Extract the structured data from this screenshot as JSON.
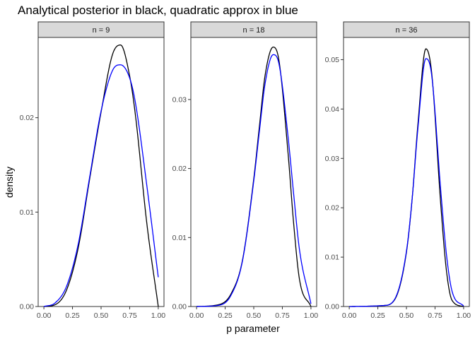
{
  "chart_data": {
    "type": "line",
    "title": "Analytical posterior in black, quadratic approx in blue",
    "xlabel": "p parameter",
    "ylabel": "density",
    "colors": {
      "analytical": "#000000",
      "quadratic": "#0000ff",
      "strip_fill": "#d9d9d9",
      "panel_border": "#333333"
    },
    "grid": false,
    "facets": [
      {
        "label": "n = 9",
        "x": [
          0,
          0.1,
          0.2,
          0.3,
          0.4,
          0.5,
          0.6,
          0.67,
          0.75,
          0.8,
          0.9,
          1.0
        ],
        "series": [
          {
            "values": [
              0,
              0.0002,
              0.0018,
              0.0062,
              0.0135,
              0.0206,
              0.0267,
              0.0277,
              0.0244,
              0.0203,
              0.0088,
              0
            ]
          },
          {
            "values": [
              0,
              0.0004,
              0.0022,
              0.0066,
              0.0137,
              0.0207,
              0.025,
              0.0256,
              0.0242,
              0.0216,
              0.0128,
              0.0031
            ]
          }
        ],
        "ylim": [
          0,
          0.0285
        ],
        "yticks": [
          0.0,
          0.01,
          0.02
        ],
        "ytick_labels": [
          "0.00",
          "0.01",
          "0.02"
        ],
        "xticks": [
          0,
          0.25,
          0.5,
          0.75,
          1.0
        ],
        "xtick_labels": [
          "0.00",
          "0.25",
          "0.50",
          "0.75",
          "1.00"
        ]
      },
      {
        "label": "n = 18",
        "x": [
          0,
          0.2,
          0.3,
          0.4,
          0.5,
          0.55,
          0.6,
          0.67,
          0.72,
          0.8,
          0.85,
          0.9,
          1.0
        ],
        "series": [
          {
            "values": [
              0,
              0.0003,
              0.0018,
              0.0066,
              0.0185,
              0.0262,
              0.0336,
              0.0376,
              0.0357,
              0.0222,
              0.0118,
              0.0039,
              0
            ]
          },
          {
            "values": [
              0,
              0.0002,
              0.0016,
              0.0065,
              0.0182,
              0.0255,
              0.0324,
              0.0365,
              0.0352,
              0.0246,
              0.0161,
              0.0082,
              0.0004
            ]
          }
        ],
        "ylim": [
          0,
          0.039
        ],
        "yticks": [
          0.0,
          0.01,
          0.02,
          0.03
        ],
        "ytick_labels": [
          "0.00",
          "0.01",
          "0.02",
          "0.03"
        ],
        "xticks": [
          0,
          0.25,
          0.5,
          0.75,
          1.0
        ],
        "xtick_labels": [
          "0.00",
          "0.25",
          "0.50",
          "0.75",
          "1.00"
        ]
      },
      {
        "label": "n = 36",
        "x": [
          0,
          0.3,
          0.4,
          0.5,
          0.55,
          0.6,
          0.67,
          0.72,
          0.8,
          0.85,
          0.9,
          1.0
        ],
        "series": [
          {
            "values": [
              0,
              0.0002,
              0.0015,
              0.011,
              0.0218,
              0.0368,
              0.0522,
              0.0475,
              0.0207,
              0.0072,
              0.0012,
              0
            ]
          },
          {
            "values": [
              0,
              0.0002,
              0.0016,
              0.0112,
              0.0218,
              0.036,
              0.0502,
              0.047,
              0.0235,
              0.0105,
              0.003,
              0.0001
            ]
          }
        ],
        "ylim": [
          0,
          0.0545
        ],
        "yticks": [
          0.0,
          0.01,
          0.02,
          0.03,
          0.04,
          0.05
        ],
        "ytick_labels": [
          "0.00",
          "0.01",
          "0.02",
          "0.03",
          "0.04",
          "0.05"
        ],
        "xticks": [
          0,
          0.25,
          0.5,
          0.75,
          1.0
        ],
        "xtick_labels": [
          "0.00",
          "0.25",
          "0.50",
          "0.75",
          "1.00"
        ]
      }
    ]
  }
}
